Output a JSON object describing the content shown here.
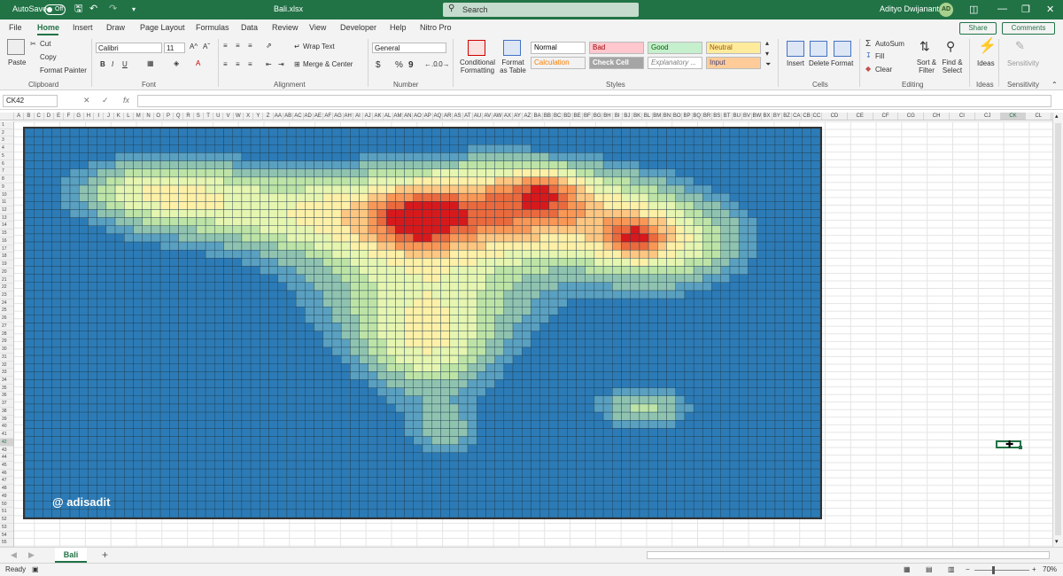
{
  "titlebar": {
    "autosave_label": "AutoSave",
    "autosave_state": "Off",
    "filename": "Bali.xlsx",
    "search_placeholder": "Search",
    "user_name": "Adityo Dwijananto",
    "user_initials": "AD"
  },
  "tabs": [
    "File",
    "Home",
    "Insert",
    "Draw",
    "Page Layout",
    "Formulas",
    "Data",
    "Review",
    "View",
    "Developer",
    "Help",
    "Nitro Pro"
  ],
  "active_tab": "Home",
  "share_label": "Share",
  "comments_label": "Comments",
  "ribbon": {
    "clipboard": {
      "paste": "Paste",
      "cut": "Cut",
      "copy": "Copy",
      "format_painter": "Format Painter",
      "group": "Clipboard"
    },
    "font": {
      "name": "Calibri",
      "size": "11",
      "bold": "B",
      "italic": "I",
      "underline": "U",
      "grow": "A^",
      "shrink": "Aˇ",
      "group": "Font"
    },
    "alignment": {
      "wrap": "Wrap Text",
      "merge": "Merge & Center",
      "group": "Alignment"
    },
    "number": {
      "format": "General",
      "currency": "$",
      "percent": "%",
      "comma": "9",
      "group": "Number"
    },
    "styles": {
      "conditional": "Conditional Formatting",
      "format_table": "Format as Table",
      "cells": [
        {
          "label": "Normal",
          "bg": "#ffffff",
          "fg": "#000000"
        },
        {
          "label": "Bad",
          "bg": "#ffc7ce",
          "fg": "#9c0006"
        },
        {
          "label": "Good",
          "bg": "#c6efce",
          "fg": "#006100"
        },
        {
          "label": "Neutral",
          "bg": "#ffeb9c",
          "fg": "#9c5700"
        },
        {
          "label": "Calculation",
          "bg": "#f2f2f2",
          "fg": "#fa7d00"
        },
        {
          "label": "Check Cell",
          "bg": "#a5a5a5",
          "fg": "#ffffff"
        },
        {
          "label": "Explanatory ...",
          "bg": "#ffffff",
          "fg": "#7f7f7f"
        },
        {
          "label": "Input",
          "bg": "#ffcc99",
          "fg": "#3f3f76"
        }
      ],
      "group": "Styles"
    },
    "cells": {
      "insert": "Insert",
      "delete": "Delete",
      "format": "Format",
      "group": "Cells"
    },
    "editing": {
      "autosum": "AutoSum",
      "fill": "Fill",
      "clear": "Clear",
      "sort": "Sort & Filter",
      "find": "Find & Select",
      "group": "Editing"
    },
    "ideas": {
      "label": "Ideas",
      "group": "Ideas"
    },
    "sensitivity": {
      "label": "Sensitivity",
      "group": "Sensitivity"
    }
  },
  "formula_bar": {
    "name_box": "CK42",
    "fx": "fx",
    "value": ""
  },
  "columns_left": [
    "A",
    "B",
    "C",
    "D",
    "E",
    "F",
    "G",
    "H",
    "I",
    "J",
    "K",
    "L",
    "M",
    "N",
    "O",
    "P",
    "Q",
    "R",
    "S",
    "T",
    "U",
    "V",
    "W",
    "X",
    "Y",
    "Z",
    "AA",
    "AB",
    "AC",
    "AD",
    "AE",
    "AF",
    "AG",
    "AH",
    "AI",
    "AJ",
    "AK",
    "AL",
    "AM",
    "AN",
    "AO",
    "AP",
    "AQ",
    "AR",
    "AS",
    "AT",
    "AU",
    "AV",
    "AW",
    "AX",
    "AY",
    "AZ",
    "BA",
    "BB",
    "BC",
    "BD",
    "BE",
    "BF",
    "BG",
    "BH",
    "BI",
    "BJ",
    "BK",
    "BL",
    "BM",
    "BN",
    "BO",
    "BP",
    "BQ",
    "BR",
    "BS",
    "BT",
    "BU",
    "BV",
    "BW",
    "BX",
    "BY",
    "BZ",
    "CA",
    "CB",
    "CC"
  ],
  "columns_right": [
    "CD",
    "CE",
    "CF",
    "CG",
    "CH",
    "CI",
    "CJ",
    "CK",
    "CL"
  ],
  "row_count": 55,
  "watermark": "@ adisadit",
  "heatmap_palette": [
    "#2c7bb6",
    "#5aa0c0",
    "#8fc3b0",
    "#bde3a6",
    "#e6f5b0",
    "#fef0a7",
    "#fdc681",
    "#f99756",
    "#ea6a3d",
    "#d7191c"
  ],
  "sheet": {
    "name": "Bali",
    "add": "+"
  },
  "status": {
    "ready": "Ready",
    "zoom": "70%"
  }
}
